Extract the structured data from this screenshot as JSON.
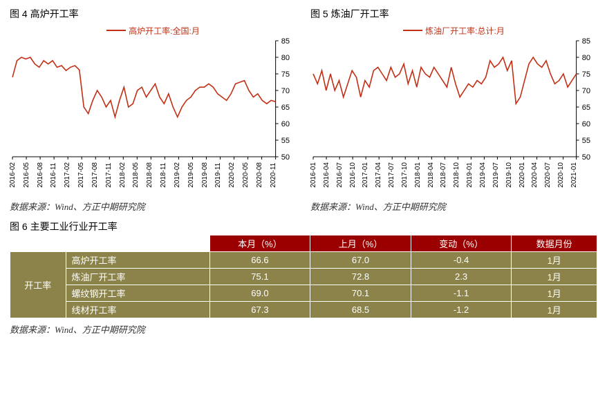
{
  "colors": {
    "line": "#c13015",
    "axis": "#000000",
    "tick": "#000000",
    "header_bg": "#9a0000",
    "cell_bg": "#8b8349",
    "cell_text": "#ffffff",
    "border": "#ffffff"
  },
  "chart4": {
    "title": "图 4   高炉开工率",
    "legend": "高炉开工率:全国:月",
    "source": "数据来源：Wind、方正中期研究院",
    "type": "line",
    "ylim": [
      50,
      85
    ],
    "ytick_step": 5,
    "yaxis_side": "right",
    "line_color": "#c13015",
    "line_width": 1.6,
    "categories": [
      "2016-02",
      "2016-05",
      "2016-08",
      "2016-11",
      "2017-02",
      "2017-05",
      "2017-08",
      "2017-11",
      "2018-02",
      "2018-05",
      "2018-08",
      "2018-11",
      "2019-02",
      "2019-05",
      "2019-08",
      "2019-11",
      "2020-02",
      "2020-05",
      "2020-08",
      "2020-11"
    ],
    "values": [
      74,
      79,
      80,
      79.5,
      80,
      78,
      77,
      79,
      78,
      79,
      77,
      77.5,
      76,
      77,
      77.5,
      76.2,
      65,
      63,
      67,
      70,
      68,
      65,
      67,
      62,
      67,
      71,
      65,
      66,
      70,
      71,
      68,
      70,
      72,
      68,
      66,
      69,
      65,
      62,
      65,
      67,
      68,
      70,
      71,
      71,
      72,
      71,
      69,
      68,
      67,
      69,
      72,
      72.5,
      73,
      70,
      68,
      69,
      67,
      66,
      67,
      66.6
    ]
  },
  "chart5": {
    "title": "图 5   炼油厂开工率",
    "legend": "炼油厂开工率:总计:月",
    "source": "数据来源：Wind、方正中期研究院",
    "type": "line",
    "ylim": [
      50,
      85
    ],
    "ytick_step": 5,
    "yaxis_side": "right",
    "line_color": "#c13015",
    "line_width": 1.6,
    "categories": [
      "2016-01",
      "2016-04",
      "2016-07",
      "2016-10",
      "2017-01",
      "2017-04",
      "2017-07",
      "2017-10",
      "2018-01",
      "2018-04",
      "2018-07",
      "2018-10",
      "2019-01",
      "2019-04",
      "2019-07",
      "2019-10",
      "2020-01",
      "2020-04",
      "2020-07",
      "2020-10",
      "2021-01"
    ],
    "values": [
      75,
      72,
      76,
      70,
      75,
      70,
      73,
      68,
      72,
      76,
      74,
      68,
      73,
      71,
      76,
      77,
      75,
      73,
      77,
      74,
      75,
      78,
      72,
      76,
      71,
      77,
      75,
      74,
      77,
      75,
      73,
      71,
      77,
      72,
      68,
      70,
      72,
      71,
      73,
      72,
      74,
      79,
      77,
      78,
      80,
      76,
      79,
      66,
      68,
      73,
      78,
      80,
      78,
      77,
      79,
      75,
      72,
      73,
      75,
      71,
      73,
      75
    ]
  },
  "table6": {
    "title": "图 6   主要工业行业开工率",
    "source": "数据来源：Wind、方正中期研究院",
    "category_label": "开工率",
    "columns": [
      "",
      "本月（%）",
      "上月（%）",
      "变动（%）",
      "数据月份"
    ],
    "rows": [
      {
        "label": "高炉开工率",
        "this_month": "66.6",
        "last_month": "67.0",
        "change": "-0.4",
        "month": "1月"
      },
      {
        "label": "炼油厂开工率",
        "this_month": "75.1",
        "last_month": "72.8",
        "change": "2.3",
        "month": "1月"
      },
      {
        "label": "螺纹钢开工率",
        "this_month": "69.0",
        "last_month": "70.1",
        "change": "-1.1",
        "month": "1月"
      },
      {
        "label": "线材开工率",
        "this_month": "67.3",
        "last_month": "68.5",
        "change": "-1.2",
        "month": "1月"
      }
    ]
  }
}
